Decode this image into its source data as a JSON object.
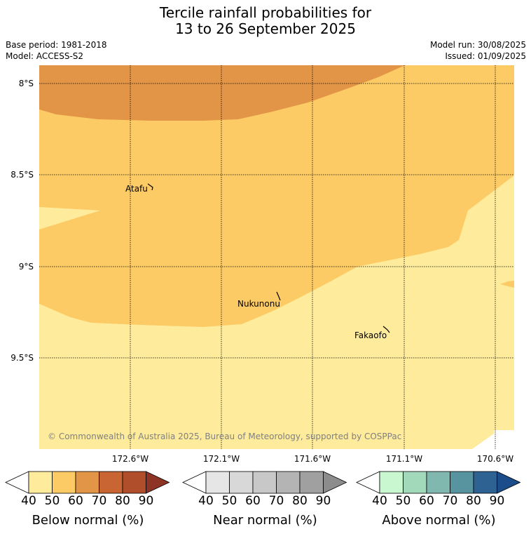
{
  "title": {
    "line1": "Tercile rainfall probabilities for",
    "line2": "13 to 26 September 2025"
  },
  "meta": {
    "base_period": "Base period: 1981-2018",
    "model": "Model: ACCESS-S2",
    "model_run": "Model run: 30/08/2025",
    "issued": "Issued: 01/09/2025"
  },
  "map": {
    "lat_labels": [
      "8°S",
      "8.5°S",
      "9°S",
      "9.5°S"
    ],
    "lon_labels": [
      "172.6°W",
      "172.1°W",
      "171.6°W",
      "171.1°W",
      "170.6°W"
    ],
    "places": {
      "atafu": "Atafu",
      "nukunonu": "Nukunonu",
      "fakaofo": "Fakaofo"
    },
    "copyright": "© Commonwealth of Australia 2025, Bureau of Meteorology, supported by COSPPac"
  },
  "colorbars": {
    "below": {
      "title": "Below normal (%)",
      "ticks": [
        "40",
        "50",
        "60",
        "70",
        "80",
        "90"
      ],
      "colors": [
        "#ffeb9c",
        "#fdcb65",
        "#e29547",
        "#c96433",
        "#b04d2b",
        "#8e3424"
      ]
    },
    "near": {
      "title": "Near normal (%)",
      "ticks": [
        "40",
        "50",
        "60",
        "70",
        "80",
        "90"
      ],
      "colors": [
        "#e6e6e6",
        "#d8d8d8",
        "#c8c8c8",
        "#b4b4b4",
        "#a0a0a0",
        "#8c8c8c"
      ]
    },
    "above": {
      "title": "Above normal (%)",
      "ticks": [
        "40",
        "50",
        "60",
        "70",
        "80",
        "90"
      ],
      "colors": [
        "#c9f7d0",
        "#a2d9bb",
        "#80b8b0",
        "#5894a0",
        "#2d6293",
        "#1a4d8a"
      ]
    }
  }
}
